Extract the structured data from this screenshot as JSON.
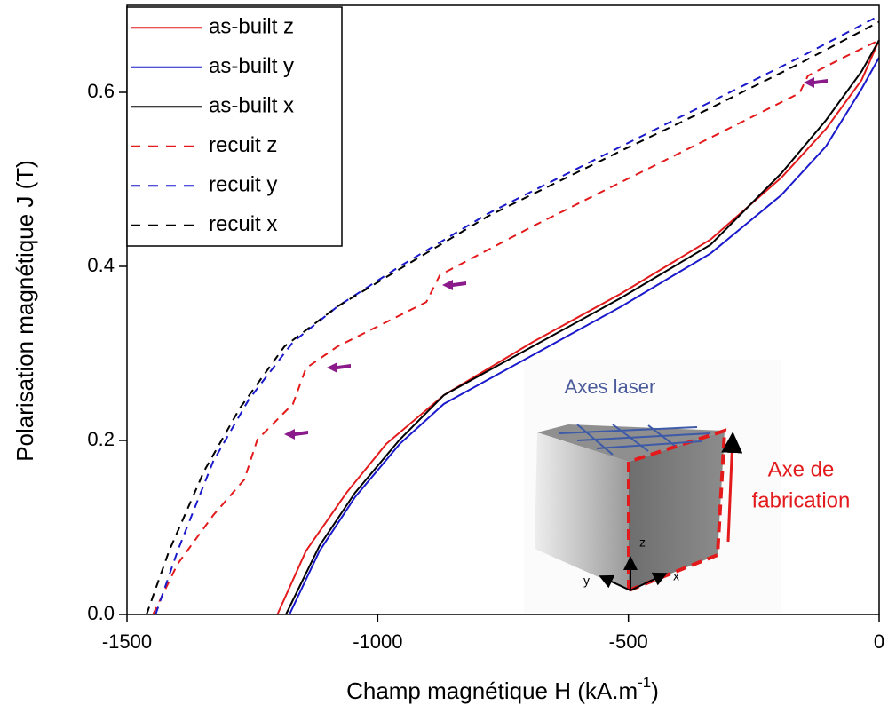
{
  "chart_data": {
    "type": "line",
    "x_label": {
      "text": "Champ magnétique H (kA.m",
      "superscript": "-1",
      "suffix": ")"
    },
    "y_label": "Polarisation magnétique J (T)",
    "xlim": [
      -1500,
      0
    ],
    "ylim": [
      0,
      0.7
    ],
    "xticks": [
      -1500,
      -1000,
      -500,
      0
    ],
    "yticks": [
      {
        "value": 0,
        "label": "0.0"
      },
      0.2,
      0.4,
      0.6
    ],
    "legend_loc": "upper left",
    "series": [
      {
        "name": "as-built z",
        "color": "#e31a1c",
        "linestyle": "solid",
        "x": [
          -1200,
          -1143,
          -1062,
          -983,
          -868,
          -691,
          -514,
          -336,
          -195,
          -106,
          -35,
          0
        ],
        "values": [
          0,
          0.073,
          0.14,
          0.196,
          0.252,
          0.313,
          0.369,
          0.431,
          0.502,
          0.558,
          0.614,
          0.66
        ]
      },
      {
        "name": "as-built y",
        "color": "#1a1acc",
        "linestyle": "solid",
        "x": [
          -1176,
          -1116,
          -1045,
          -956,
          -868,
          -691,
          -514,
          -336,
          -195,
          -106,
          -35,
          0
        ],
        "values": [
          0,
          0.073,
          0.135,
          0.196,
          0.242,
          0.298,
          0.354,
          0.415,
          0.482,
          0.538,
          0.604,
          0.64
        ]
      },
      {
        "name": "as-built x",
        "color": "#000000",
        "linestyle": "solid",
        "x": [
          -1183,
          -1116,
          -1045,
          -956,
          -868,
          -691,
          -514,
          -336,
          -195,
          -106,
          -35,
          0
        ],
        "values": [
          0,
          0.079,
          0.14,
          0.201,
          0.252,
          0.308,
          0.364,
          0.425,
          0.507,
          0.568,
          0.624,
          0.66
        ]
      },
      {
        "name": "recuit z",
        "color": "#e31a1c",
        "linestyle": "dashed",
        "x": [
          -1448,
          -1399,
          -1328,
          -1266,
          -1240,
          -1169,
          -1143,
          -1080,
          -903,
          -876,
          -691,
          -514,
          -336,
          -159,
          -142,
          -71,
          0
        ],
        "values": [
          0,
          0.058,
          0.114,
          0.155,
          0.201,
          0.242,
          0.283,
          0.308,
          0.359,
          0.39,
          0.446,
          0.497,
          0.548,
          0.599,
          0.619,
          0.64,
          0.66
        ]
      },
      {
        "name": "recuit y",
        "color": "#1a1acc",
        "linestyle": "dashed",
        "x": [
          -1443,
          -1399,
          -1328,
          -1257,
          -1169,
          -1080,
          -956,
          -779,
          -514,
          -336,
          -159,
          0
        ],
        "values": [
          0,
          0.073,
          0.176,
          0.247,
          0.313,
          0.354,
          0.4,
          0.461,
          0.538,
          0.589,
          0.64,
          0.688
        ]
      },
      {
        "name": "recuit x",
        "color": "#000000",
        "linestyle": "dashed",
        "x": [
          -1461,
          -1416,
          -1346,
          -1275,
          -1186,
          -1080,
          -956,
          -779,
          -514,
          -336,
          -159,
          0
        ],
        "values": [
          0,
          0.073,
          0.165,
          0.237,
          0.308,
          0.354,
          0.397,
          0.458,
          0.533,
          0.582,
          0.633,
          0.681
        ]
      }
    ],
    "inset": {
      "title": "Axes laser",
      "build_axis": [
        "Axe de",
        "fabrication"
      ],
      "axes": [
        "z",
        "y",
        "x"
      ]
    }
  }
}
